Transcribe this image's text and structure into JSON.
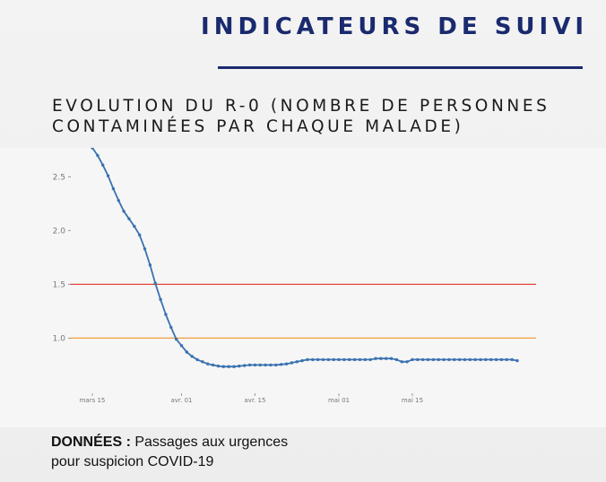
{
  "header": {
    "title": "INDICATEURS DE SUIVI"
  },
  "chart_data": {
    "type": "line",
    "title": "EVOLUTION DU R-0 (NOMBRE DE PERSONNES CONTAMINÉES PAR CHAQUE MALADE)",
    "title_lines": [
      "EVOLUTION DU R-0 (NOMBRE DE PERSONNES",
      "CONTAMINÉES PAR CHAQUE MALADE)"
    ],
    "xlabel": "",
    "ylabel": "",
    "x_tick_labels": [
      "mars 15",
      "avr. 01",
      "avr. 15",
      "mai 01",
      "mai 15"
    ],
    "x_ticks_day": [
      0,
      17,
      31,
      47,
      61
    ],
    "y_ticks": [
      "2.5",
      "2.0",
      "1.5",
      "1.0"
    ],
    "y_tick_values": [
      2.5,
      2.0,
      1.5,
      1.0
    ],
    "ylim": [
      0.62,
      2.77
    ],
    "xlim_day": [
      0,
      81
    ],
    "grid": false,
    "reference_lines": [
      {
        "value": 1.5,
        "color": "#e0453a"
      },
      {
        "value": 1.0,
        "color": "#f0a040"
      }
    ],
    "series_color": "#3a72b0",
    "x": [
      "03-15",
      "03-16",
      "03-17",
      "03-18",
      "03-19",
      "03-20",
      "03-21",
      "03-22",
      "03-23",
      "03-24",
      "03-25",
      "03-26",
      "03-27",
      "03-28",
      "03-29",
      "03-30",
      "03-31",
      "04-01",
      "04-02",
      "04-03",
      "04-04",
      "04-05",
      "04-06",
      "04-07",
      "04-08",
      "04-09",
      "04-10",
      "04-11",
      "04-12",
      "04-13",
      "04-14",
      "04-15",
      "04-16",
      "04-17",
      "04-18",
      "04-19",
      "04-20",
      "04-21",
      "04-22",
      "04-23",
      "04-24",
      "04-25",
      "04-26",
      "04-27",
      "04-28",
      "04-29",
      "04-30",
      "05-01",
      "05-02",
      "05-03",
      "05-04",
      "05-05",
      "05-06",
      "05-07",
      "05-08",
      "05-09",
      "05-10",
      "05-11",
      "05-12",
      "05-13",
      "05-14",
      "05-15",
      "05-16",
      "05-17",
      "05-18",
      "05-19",
      "05-20",
      "05-21",
      "05-22",
      "05-23",
      "05-24",
      "05-25",
      "05-26",
      "05-27",
      "05-28",
      "05-29",
      "05-30",
      "05-31",
      "06-01",
      "06-02",
      "06-03",
      "06-04"
    ],
    "y": [
      2.77,
      2.7,
      2.61,
      2.51,
      2.39,
      2.28,
      2.18,
      2.11,
      2.04,
      1.96,
      1.83,
      1.68,
      1.51,
      1.36,
      1.22,
      1.1,
      0.99,
      0.93,
      0.87,
      0.83,
      0.8,
      0.78,
      0.76,
      0.75,
      0.74,
      0.735,
      0.735,
      0.735,
      0.74,
      0.745,
      0.75,
      0.75,
      0.75,
      0.75,
      0.75,
      0.75,
      0.755,
      0.76,
      0.77,
      0.78,
      0.79,
      0.8,
      0.8,
      0.8,
      0.8,
      0.8,
      0.8,
      0.8,
      0.8,
      0.8,
      0.8,
      0.8,
      0.8,
      0.8,
      0.81,
      0.81,
      0.81,
      0.81,
      0.8,
      0.78,
      0.78,
      0.8,
      0.8,
      0.8,
      0.8,
      0.8,
      0.8,
      0.8,
      0.8,
      0.8,
      0.8,
      0.8,
      0.8,
      0.8,
      0.8,
      0.8,
      0.8,
      0.8,
      0.8,
      0.8,
      0.8,
      0.79
    ]
  },
  "footer": {
    "label": "DONNÉES :",
    "line1": " Passages aux urgences",
    "line2": "pour suspicion COVID-19"
  }
}
